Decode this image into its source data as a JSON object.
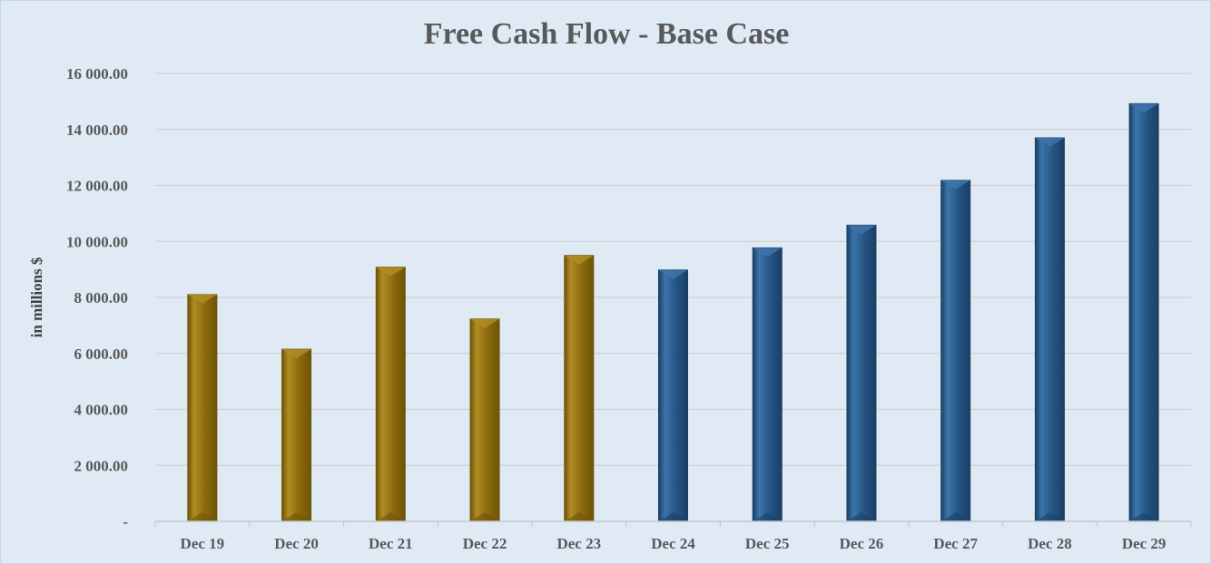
{
  "chart_data": {
    "type": "bar",
    "title": "Free Cash Flow - Base Case",
    "xlabel": "",
    "ylabel": "in millions $",
    "categories": [
      "Dec 19",
      "Dec 20",
      "Dec 21",
      "Dec 22",
      "Dec 23",
      "Dec 24",
      "Dec 25",
      "Dec 26",
      "Dec 27",
      "Dec 28",
      "Dec 29"
    ],
    "values": [
      8100,
      6150,
      9080,
      7230,
      9500,
      8980,
      9770,
      10580,
      12180,
      13700,
      14920
    ],
    "bar_kind": [
      "actual",
      "actual",
      "actual",
      "actual",
      "actual",
      "forecast",
      "forecast",
      "forecast",
      "forecast",
      "forecast",
      "forecast"
    ],
    "ylim": [
      0,
      16000
    ],
    "yticks": [
      0,
      2000,
      4000,
      6000,
      8000,
      10000,
      12000,
      14000,
      16000
    ],
    "ytick_labels": [
      "-",
      "2 000.00",
      "4 000.00",
      "6 000.00",
      "8 000.00",
      "10 000.00",
      "12 000.00",
      "14 000.00",
      "16 000.00"
    ],
    "grid": true,
    "legend": "none",
    "colors": {
      "actual": "#8a6a0c",
      "actual_light": "#b08d22",
      "actual_dark": "#6e5408",
      "forecast": "#255584",
      "forecast_light": "#3d74aa",
      "forecast_dark": "#1a3f66",
      "background": "#dfeaf5",
      "gridline": "#d0d0d0",
      "text": "#595959"
    }
  }
}
